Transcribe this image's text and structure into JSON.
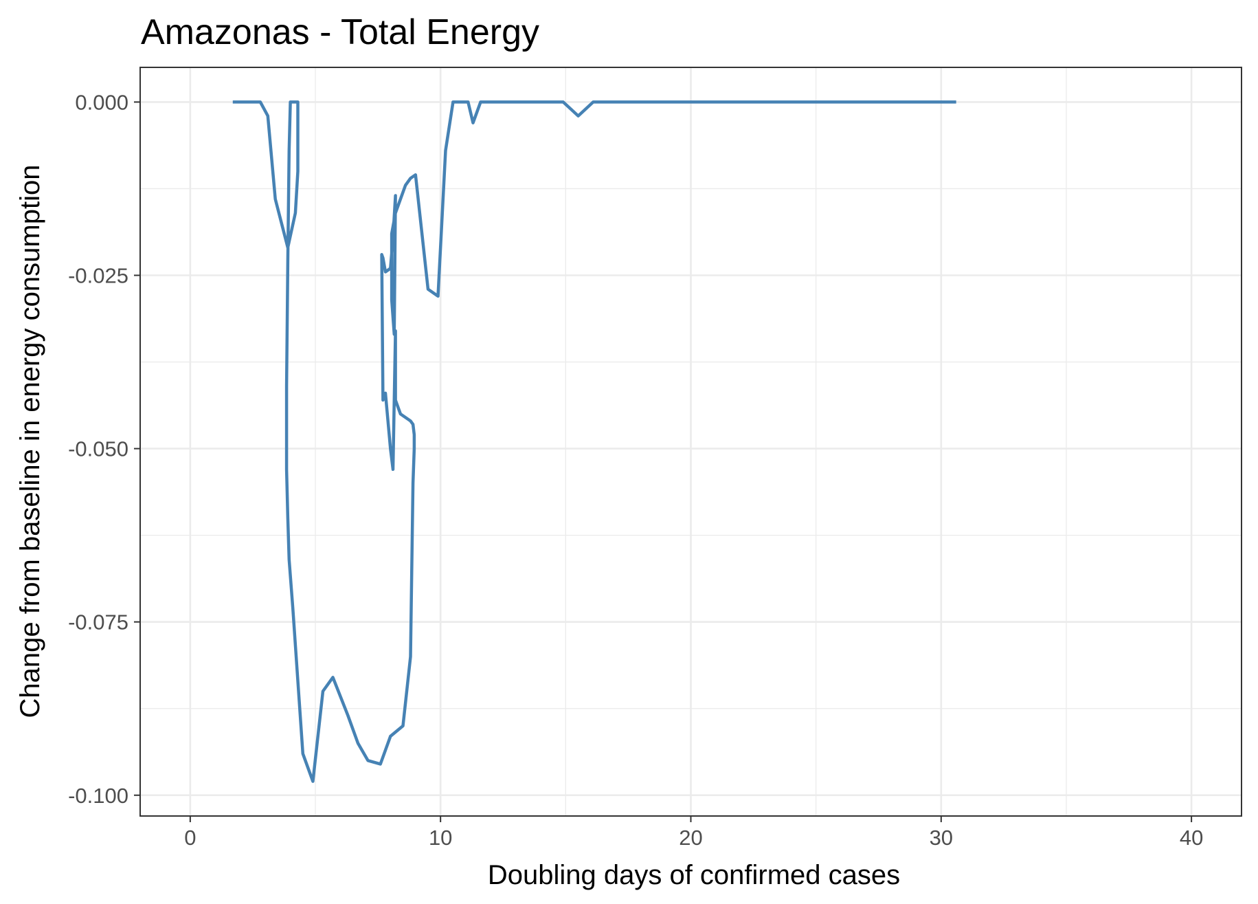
{
  "chart_data": {
    "type": "line",
    "title": "Amazonas - Total Energy",
    "xlabel": "Doubling days of confirmed cases",
    "ylabel": "Change from baseline in energy consumption",
    "xlim": [
      -2,
      42
    ],
    "ylim": [
      -0.103,
      0.005
    ],
    "x_ticks": [
      0,
      10,
      20,
      30,
      40
    ],
    "x_tick_labels": [
      "0",
      "10",
      "20",
      "30",
      "40"
    ],
    "x_minor_ticks": [
      5,
      15,
      25,
      35
    ],
    "y_ticks": [
      0.0,
      -0.025,
      -0.05,
      -0.075,
      -0.1
    ],
    "y_tick_labels": [
      "0.000",
      "-0.025",
      "-0.050",
      "-0.075",
      "-0.100"
    ],
    "y_minor_ticks": [
      -0.0125,
      -0.0375,
      -0.0625,
      -0.0875
    ],
    "grid": true,
    "line_color": "#4682B4",
    "series": [
      {
        "x": [
          1.7,
          2.8,
          3.1,
          3.4,
          3.9,
          4.2,
          4.3,
          4.3,
          4.2,
          4.2,
          4.0,
          3.95,
          3.9,
          3.85,
          3.85,
          3.9,
          3.95,
          4.1,
          4.5,
          4.9,
          5.3,
          5.7,
          6.3,
          6.7,
          7.1,
          7.6,
          8.0,
          8.5,
          8.8,
          8.9,
          8.95,
          8.95,
          8.9,
          8.8,
          8.4,
          8.2,
          8.2,
          8.1,
          8.0,
          7.8,
          7.7,
          7.65,
          7.7,
          7.8,
          8.0,
          8.1,
          8.2,
          8.15,
          8.05,
          8.05,
          8.25,
          8.2,
          8.6,
          8.8,
          9.0,
          9.5,
          9.9,
          10.2,
          10.5,
          11.1,
          11.3,
          11.6,
          14.9,
          15.5,
          16.1,
          30.6
        ],
        "y": [
          0.0,
          0.0,
          -0.002,
          -0.014,
          -0.021,
          -0.016,
          -0.01,
          0.0,
          0.0,
          0.0,
          0.0,
          -0.007,
          -0.023,
          -0.041,
          -0.053,
          -0.06,
          -0.066,
          -0.073,
          -0.094,
          -0.098,
          -0.085,
          -0.083,
          -0.0885,
          -0.0925,
          -0.095,
          -0.0955,
          -0.0915,
          -0.09,
          -0.08,
          -0.055,
          -0.05,
          -0.048,
          -0.0465,
          -0.046,
          -0.045,
          -0.043,
          -0.033,
          -0.053,
          -0.05,
          -0.042,
          -0.043,
          -0.022,
          -0.0225,
          -0.0245,
          -0.024,
          -0.0195,
          -0.0135,
          -0.0335,
          -0.0285,
          -0.019,
          -0.015,
          -0.016,
          -0.012,
          -0.011,
          -0.0105,
          -0.027,
          -0.028,
          -0.007,
          0.0,
          0.0,
          -0.003,
          0.0,
          0.0,
          -0.002,
          0.0,
          0.0
        ]
      }
    ]
  }
}
